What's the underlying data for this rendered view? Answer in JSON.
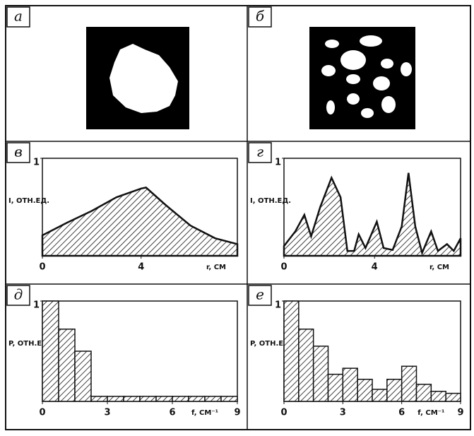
{
  "panels": [
    {
      "label": "а"
    },
    {
      "label": "б"
    }
  ],
  "chart_data": [
    {
      "type": "area",
      "title": "в",
      "ylabel": "I, ОТН.ЕД.",
      "xlabel": "r, СМ",
      "x": [
        0,
        1,
        2,
        3,
        4,
        4.2,
        5,
        6,
        7,
        7.9
      ],
      "values": [
        0.21,
        0.34,
        0.46,
        0.6,
        0.69,
        0.7,
        0.52,
        0.31,
        0.18,
        0.12
      ],
      "xlim": [
        0,
        7.9
      ],
      "ylim": [
        0,
        1
      ],
      "xticks": [
        0,
        4
      ],
      "yticks": [
        1
      ],
      "color": "#111"
    },
    {
      "type": "area",
      "title": "г",
      "ylabel": "I, ОТН.ЕД.",
      "xlabel": "r, СМ",
      "x": [
        0,
        0.5,
        0.9,
        1.2,
        1.6,
        2.1,
        2.5,
        2.8,
        3.1,
        3.3,
        3.6,
        4.1,
        4.4,
        4.8,
        5.2,
        5.5,
        5.8,
        6.1,
        6.5,
        6.8,
        7.2,
        7.5,
        7.8
      ],
      "values": [
        0.1,
        0.25,
        0.42,
        0.2,
        0.5,
        0.8,
        0.6,
        0.05,
        0.05,
        0.22,
        0.08,
        0.35,
        0.08,
        0.06,
        0.3,
        0.85,
        0.3,
        0.03,
        0.25,
        0.05,
        0.12,
        0.05,
        0.18
      ],
      "xlim": [
        0,
        7.8
      ],
      "ylim": [
        0,
        1
      ],
      "xticks": [
        0,
        4
      ],
      "yticks": [
        1
      ],
      "color": "#111"
    },
    {
      "type": "histogram",
      "title": "д",
      "ylabel": "P, ОТН.ЕД.",
      "xlabel": "f, СМ⁻¹",
      "bins": [
        0,
        0.75,
        1.5,
        2.25,
        3,
        3.75,
        4.5,
        5.25,
        6,
        6.75,
        7.5,
        8.25,
        9
      ],
      "values": [
        1,
        0.72,
        0.5,
        0.05,
        0.05,
        0.05,
        0.05,
        0.05,
        0.05,
        0.05,
        0.05,
        0.05
      ],
      "xlim": [
        0,
        9
      ],
      "ylim": [
        0,
        1
      ],
      "xticks": [
        0,
        3,
        6,
        9
      ],
      "yticks": [
        1
      ],
      "color": "#111"
    },
    {
      "type": "histogram",
      "title": "е",
      "ylabel": "P, ОТН.ЕД.",
      "xlabel": "f, СМ⁻¹",
      "bins": [
        0,
        0.75,
        1.5,
        2.25,
        3,
        3.75,
        4.5,
        5.25,
        6,
        6.75,
        7.5,
        8.25,
        9
      ],
      "values": [
        1,
        0.72,
        0.55,
        0.27,
        0.33,
        0.22,
        0.12,
        0.22,
        0.35,
        0.17,
        0.1,
        0.08
      ],
      "xlim": [
        0,
        9
      ],
      "ylim": [
        0,
        1
      ],
      "xticks": [
        0,
        3,
        6,
        9
      ],
      "yticks": [
        1
      ],
      "color": "#111"
    }
  ]
}
